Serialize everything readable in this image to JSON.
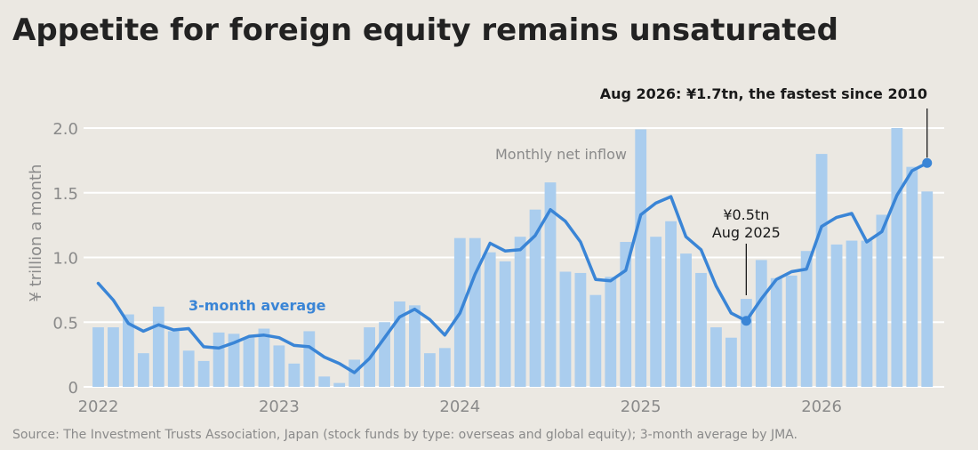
{
  "title": "Appetite for foreign equity remains unsaturated",
  "source": "Source: The Investment Trusts Association, Japan (stock funds by type: overseas and global equity); 3-month average by JMA.",
  "colors": {
    "bar": "#aacdee",
    "line": "#3a85d6",
    "grid": "#ffffff",
    "text": "#8a8a8a"
  },
  "chart_data": {
    "type": "bar",
    "ylabel": "¥ trillion a month",
    "ylim": [
      0,
      2.1
    ],
    "yticks": [
      0,
      0.5,
      1.0,
      1.5,
      2.0
    ],
    "ytick_labels": [
      "0",
      "0.5",
      "1.0",
      "1.5",
      "2.0"
    ],
    "xtick_labels": [
      "2022",
      "2023",
      "2024",
      "2025",
      "2026"
    ],
    "x_start": "2022-01",
    "grid": true,
    "series": [
      {
        "name": "Monthly net inflow",
        "kind": "bar",
        "values": [
          0.46,
          0.46,
          0.56,
          0.26,
          0.62,
          0.43,
          0.28,
          0.2,
          0.42,
          0.41,
          0.38,
          0.45,
          0.32,
          0.18,
          0.43,
          0.08,
          0.03,
          0.21,
          0.46,
          0.5,
          0.66,
          0.63,
          0.26,
          0.3,
          1.15,
          1.15,
          1.04,
          0.97,
          1.16,
          1.37,
          1.58,
          0.89,
          0.88,
          0.71,
          0.85,
          1.12,
          1.99,
          1.16,
          1.28,
          1.03,
          0.88,
          0.46,
          0.38,
          0.68,
          0.98,
          0.84,
          0.86,
          1.05,
          1.8,
          1.1,
          1.13,
          1.13,
          1.33,
          2.0,
          1.7,
          1.51
        ]
      },
      {
        "name": "3-month average",
        "kind": "line",
        "values": [
          0.8,
          0.67,
          0.49,
          0.43,
          0.48,
          0.44,
          0.45,
          0.31,
          0.3,
          0.34,
          0.39,
          0.4,
          0.38,
          0.32,
          0.31,
          0.23,
          0.18,
          0.11,
          0.22,
          0.38,
          0.54,
          0.6,
          0.52,
          0.4,
          0.57,
          0.87,
          1.11,
          1.05,
          1.06,
          1.17,
          1.37,
          1.28,
          1.12,
          0.83,
          0.82,
          0.9,
          1.33,
          1.42,
          1.47,
          1.16,
          1.06,
          0.78,
          0.57,
          0.51,
          0.68,
          0.83,
          0.89,
          0.91,
          1.24,
          1.31,
          1.34,
          1.12,
          1.2,
          1.48,
          1.67,
          1.73
        ]
      }
    ],
    "annotations": [
      {
        "text": "Aug 2026: ¥1.7tn, the fastest since 2010",
        "index": 55,
        "value": 1.73
      },
      {
        "text_line1": "¥0.5tn",
        "text_line2": "Aug 2025",
        "index": 43,
        "value": 0.51
      }
    ]
  }
}
